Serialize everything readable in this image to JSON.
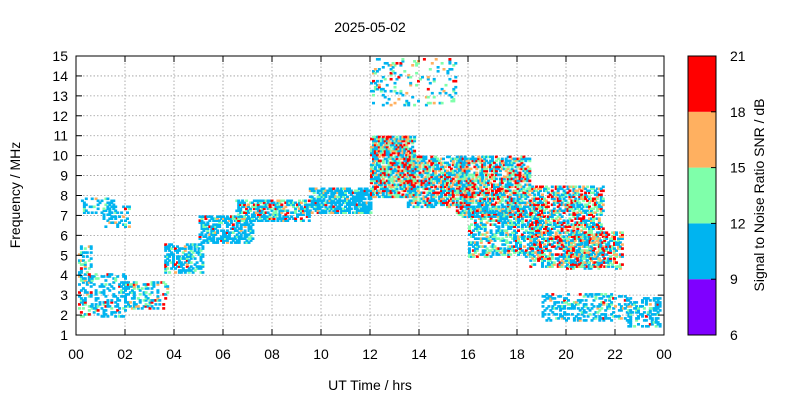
{
  "chart_data": {
    "type": "heatmap",
    "title": "2025-05-02",
    "xlabel": "UT Time / hrs",
    "ylabel": "Frequency / MHz",
    "xlim": [
      0,
      24
    ],
    "ylim": [
      1,
      15
    ],
    "x_ticks": [
      "00",
      "02",
      "04",
      "06",
      "08",
      "10",
      "12",
      "14",
      "16",
      "18",
      "20",
      "22",
      "00"
    ],
    "y_ticks": [
      "1",
      "2",
      "3",
      "4",
      "5",
      "6",
      "7",
      "8",
      "9",
      "10",
      "11",
      "12",
      "13",
      "14",
      "15"
    ],
    "grid": true,
    "colorbar": {
      "label": "Signal to Noise Ratio SNR / dB",
      "ticks": [
        "6",
        "9",
        "12",
        "15",
        "18",
        "21"
      ],
      "bands": [
        {
          "from": 6,
          "to": 9,
          "color": "#7f00ff"
        },
        {
          "from": 9,
          "to": 12,
          "color": "#00b4f0"
        },
        {
          "from": 12,
          "to": 15,
          "color": "#7fffaa"
        },
        {
          "from": 15,
          "to": 18,
          "color": "#ffb060"
        },
        {
          "from": 18,
          "to": 21,
          "color": "#ff0000"
        }
      ]
    },
    "clusters": [
      {
        "x": [
          0.0,
          0.6
        ],
        "y": [
          2.0,
          5.5
        ],
        "snr": "mixed",
        "density": 0.35
      },
      {
        "x": [
          0.2,
          1.6
        ],
        "y": [
          7.2,
          7.9
        ],
        "snr": "low",
        "density": 0.35
      },
      {
        "x": [
          0.6,
          2.0
        ],
        "y": [
          2.0,
          4.2
        ],
        "snr": "low",
        "density": 0.3
      },
      {
        "x": [
          1.0,
          2.2
        ],
        "y": [
          6.5,
          7.5
        ],
        "snr": "low",
        "density": 0.25
      },
      {
        "x": [
          2.0,
          3.7
        ],
        "y": [
          2.4,
          3.8
        ],
        "snr": "mixed",
        "density": 0.4
      },
      {
        "x": [
          3.6,
          5.2
        ],
        "y": [
          4.2,
          5.6
        ],
        "snr": "low",
        "density": 0.5
      },
      {
        "x": [
          5.0,
          7.2
        ],
        "y": [
          5.7,
          7.0
        ],
        "snr": "low",
        "density": 0.6
      },
      {
        "x": [
          6.5,
          9.5
        ],
        "y": [
          6.8,
          7.8
        ],
        "snr": "mixed",
        "density": 0.6
      },
      {
        "x": [
          9.5,
          12.0
        ],
        "y": [
          7.2,
          8.4
        ],
        "snr": "low",
        "density": 0.7
      },
      {
        "x": [
          12.0,
          13.8
        ],
        "y": [
          8.0,
          11.0
        ],
        "snr": "high",
        "density": 0.75
      },
      {
        "x": [
          13.5,
          16.0
        ],
        "y": [
          7.5,
          10.0
        ],
        "snr": "high",
        "density": 0.65
      },
      {
        "x": [
          15.5,
          18.5
        ],
        "y": [
          7.0,
          10.0
        ],
        "snr": "high",
        "density": 0.6
      },
      {
        "x": [
          16.0,
          19.0
        ],
        "y": [
          5.0,
          7.5
        ],
        "snr": "mixed",
        "density": 0.5
      },
      {
        "x": [
          18.5,
          21.5
        ],
        "y": [
          4.5,
          8.5
        ],
        "snr": "high",
        "density": 0.55
      },
      {
        "x": [
          20.0,
          22.3
        ],
        "y": [
          4.4,
          6.2
        ],
        "snr": "high",
        "density": 0.45
      },
      {
        "x": [
          19.0,
          22.5
        ],
        "y": [
          1.8,
          3.2
        ],
        "snr": "low",
        "density": 0.3
      },
      {
        "x": [
          22.5,
          24.0
        ],
        "y": [
          1.5,
          3.0
        ],
        "snr": "low",
        "density": 0.35
      },
      {
        "x": [
          12.0,
          15.5
        ],
        "y": [
          12.6,
          15.0
        ],
        "snr": "mixed",
        "density": 0.15
      }
    ]
  }
}
